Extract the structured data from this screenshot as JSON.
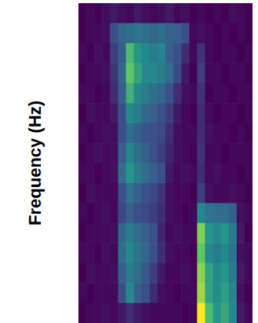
{
  "chart_data": {
    "type": "heatmap",
    "ylabel": "Frequency (Hz)",
    "tick_labels": false,
    "z": [
      [
        0.08,
        0.1,
        0.08,
        0.12,
        0.15,
        0.12,
        0.1,
        0.15,
        0.12,
        0.1,
        0.12,
        0.15,
        0.1,
        0.12,
        0.08,
        0.1,
        0.08,
        0.1,
        0.08,
        0.12,
        0.1,
        0.08
      ],
      [
        0.08,
        0.1,
        0.1,
        0.12,
        0.3,
        0.38,
        0.4,
        0.42,
        0.4,
        0.38,
        0.4,
        0.36,
        0.35,
        0.3,
        0.1,
        0.12,
        0.1,
        0.08,
        0.1,
        0.08,
        0.1,
        0.08
      ],
      [
        0.1,
        0.08,
        0.12,
        0.1,
        0.25,
        0.35,
        0.7,
        0.55,
        0.5,
        0.45,
        0.48,
        0.35,
        0.3,
        0.2,
        0.1,
        0.22,
        0.1,
        0.08,
        0.1,
        0.1,
        0.08,
        0.1
      ],
      [
        0.08,
        0.1,
        0.1,
        0.12,
        0.22,
        0.38,
        0.75,
        0.6,
        0.5,
        0.5,
        0.45,
        0.4,
        0.28,
        0.15,
        0.08,
        0.25,
        0.1,
        0.1,
        0.08,
        0.1,
        0.1,
        0.08
      ],
      [
        0.1,
        0.1,
        0.08,
        0.1,
        0.2,
        0.35,
        0.65,
        0.5,
        0.45,
        0.4,
        0.38,
        0.3,
        0.2,
        0.12,
        0.1,
        0.22,
        0.08,
        0.1,
        0.1,
        0.08,
        0.1,
        0.1
      ],
      [
        0.08,
        0.12,
        0.1,
        0.1,
        0.15,
        0.3,
        0.5,
        0.45,
        0.38,
        0.35,
        0.3,
        0.25,
        0.15,
        0.1,
        0.08,
        0.2,
        0.1,
        0.08,
        0.1,
        0.1,
        0.08,
        0.1
      ],
      [
        0.1,
        0.08,
        0.1,
        0.12,
        0.12,
        0.3,
        0.4,
        0.35,
        0.32,
        0.3,
        0.28,
        0.2,
        0.12,
        0.1,
        0.1,
        0.2,
        0.12,
        0.1,
        0.1,
        0.08,
        0.1,
        0.08
      ],
      [
        0.08,
        0.1,
        0.12,
        0.1,
        0.12,
        0.35,
        0.48,
        0.4,
        0.35,
        0.3,
        0.25,
        0.18,
        0.12,
        0.1,
        0.08,
        0.22,
        0.1,
        0.1,
        0.08,
        0.1,
        0.1,
        0.1
      ],
      [
        0.1,
        0.1,
        0.08,
        0.1,
        0.12,
        0.4,
        0.55,
        0.45,
        0.4,
        0.35,
        0.3,
        0.15,
        0.1,
        0.12,
        0.1,
        0.2,
        0.1,
        0.12,
        0.1,
        0.1,
        0.08,
        0.1
      ],
      [
        0.08,
        0.12,
        0.1,
        0.1,
        0.1,
        0.3,
        0.42,
        0.35,
        0.3,
        0.28,
        0.22,
        0.12,
        0.1,
        0.1,
        0.08,
        0.25,
        0.12,
        0.1,
        0.1,
        0.12,
        0.1,
        0.08
      ],
      [
        0.1,
        0.08,
        0.1,
        0.12,
        0.1,
        0.28,
        0.35,
        0.3,
        0.28,
        0.25,
        0.2,
        0.12,
        0.1,
        0.08,
        0.1,
        0.5,
        0.42,
        0.4,
        0.4,
        0.35,
        0.12,
        0.1
      ],
      [
        0.08,
        0.1,
        0.1,
        0.1,
        0.12,
        0.38,
        0.45,
        0.4,
        0.35,
        0.3,
        0.18,
        0.1,
        0.12,
        0.1,
        0.1,
        0.8,
        0.55,
        0.5,
        0.55,
        0.45,
        0.15,
        0.08
      ],
      [
        0.1,
        0.1,
        0.08,
        0.12,
        0.1,
        0.4,
        0.5,
        0.42,
        0.38,
        0.3,
        0.2,
        0.12,
        0.1,
        0.1,
        0.08,
        0.75,
        0.5,
        0.45,
        0.5,
        0.42,
        0.12,
        0.1
      ],
      [
        0.08,
        0.12,
        0.1,
        0.1,
        0.12,
        0.35,
        0.45,
        0.4,
        0.32,
        0.25,
        0.15,
        0.1,
        0.1,
        0.12,
        0.1,
        0.82,
        0.6,
        0.5,
        0.55,
        0.45,
        0.15,
        0.1
      ],
      [
        0.1,
        0.08,
        0.1,
        0.1,
        0.1,
        0.3,
        0.5,
        0.35,
        0.3,
        0.2,
        0.12,
        0.1,
        0.08,
        0.1,
        0.1,
        0.85,
        0.6,
        0.52,
        0.58,
        0.48,
        0.12,
        0.08
      ],
      [
        0.08,
        0.1,
        0.1,
        0.12,
        0.1,
        0.15,
        0.2,
        0.15,
        0.12,
        0.1,
        0.1,
        0.1,
        0.1,
        0.08,
        0.1,
        0.98,
        0.7,
        0.55,
        0.62,
        0.5,
        0.15,
        0.1
      ]
    ]
  }
}
